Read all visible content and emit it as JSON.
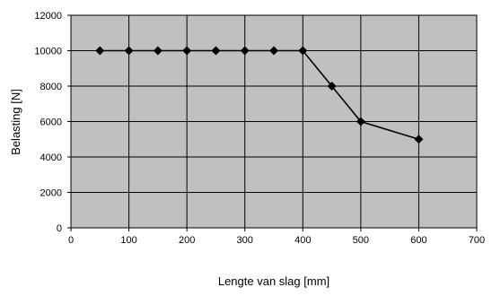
{
  "chart_data": {
    "type": "line",
    "title": "",
    "xlabel": "Lengte van slag [mm]",
    "ylabel": "Belasting [N]",
    "xlim": [
      0,
      700
    ],
    "ylim": [
      0,
      12000
    ],
    "xticks": [
      0,
      100,
      200,
      300,
      400,
      500,
      600,
      700
    ],
    "yticks": [
      0,
      2000,
      4000,
      6000,
      8000,
      10000,
      12000
    ],
    "grid": true,
    "legend": "none",
    "colors": {
      "plot_background": "#c0c0c0",
      "grid": "#000000",
      "series": "#000000"
    },
    "series": [
      {
        "marker": "diamond",
        "x": [
          50,
          100,
          150,
          200,
          250,
          300,
          350,
          400,
          450,
          500,
          600
        ],
        "y": [
          10000,
          10000,
          10000,
          10000,
          10000,
          10000,
          10000,
          10000,
          8000,
          6000,
          5000
        ]
      }
    ]
  }
}
